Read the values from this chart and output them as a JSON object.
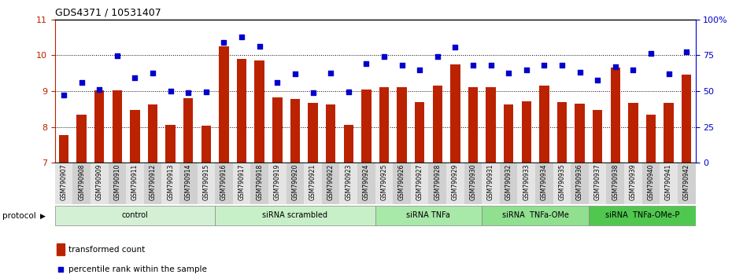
{
  "title": "GDS4371 / 10531407",
  "samples": [
    "GSM790907",
    "GSM790908",
    "GSM790909",
    "GSM790910",
    "GSM790911",
    "GSM790912",
    "GSM790913",
    "GSM790914",
    "GSM790915",
    "GSM790916",
    "GSM790917",
    "GSM790918",
    "GSM790919",
    "GSM790920",
    "GSM790921",
    "GSM790922",
    "GSM790923",
    "GSM790924",
    "GSM790925",
    "GSM790926",
    "GSM790927",
    "GSM790928",
    "GSM790929",
    "GSM790930",
    "GSM790931",
    "GSM790932",
    "GSM790933",
    "GSM790934",
    "GSM790935",
    "GSM790936",
    "GSM790937",
    "GSM790938",
    "GSM790939",
    "GSM790940",
    "GSM790941",
    "GSM790942"
  ],
  "bar_values": [
    7.77,
    8.33,
    9.03,
    9.03,
    8.47,
    8.62,
    8.05,
    8.8,
    8.03,
    10.25,
    9.9,
    9.85,
    8.82,
    8.77,
    8.68,
    8.63,
    8.06,
    9.05,
    9.1,
    9.1,
    8.7,
    9.15,
    9.75,
    9.1,
    9.1,
    8.62,
    8.72,
    9.15,
    8.7,
    8.65,
    8.47,
    9.65,
    8.68,
    8.35,
    8.68,
    9.45
  ],
  "blue_values": [
    8.88,
    9.23,
    9.05,
    9.98,
    9.37,
    9.5,
    9.0,
    8.95,
    8.98,
    10.35,
    10.52,
    10.25,
    9.25,
    9.48,
    8.95,
    9.5,
    8.97,
    9.77,
    9.97,
    9.72,
    9.6,
    9.97,
    10.22,
    9.72,
    9.72,
    9.5,
    9.6,
    9.72,
    9.72,
    9.52,
    9.3,
    9.68,
    9.6,
    10.05,
    9.48,
    10.1
  ],
  "groups": [
    {
      "label": "control",
      "start": 0,
      "end": 9,
      "color": "#d4f0d4"
    },
    {
      "label": "siRNA scrambled",
      "start": 9,
      "end": 18,
      "color": "#c8f0c8"
    },
    {
      "label": "siRNA TNFa",
      "start": 18,
      "end": 24,
      "color": "#a8e8a8"
    },
    {
      "label": "siRNA  TNFa-OMe",
      "start": 24,
      "end": 30,
      "color": "#90e090"
    },
    {
      "label": "siRNA  TNFa-OMe-P",
      "start": 30,
      "end": 36,
      "color": "#50c850"
    }
  ],
  "ylim_left": [
    7,
    11
  ],
  "yticks_left": [
    7,
    8,
    9,
    10,
    11
  ],
  "yticks_right": [
    0,
    25,
    50,
    75,
    100
  ],
  "yticks_right_labels": [
    "0",
    "25",
    "50",
    "75",
    "100%"
  ],
  "bar_color": "#bb2200",
  "dot_color": "#0000cc",
  "label_transformed": "transformed count",
  "label_percentile": "percentile rank within the sample",
  "xlabel_protocol": "protocol"
}
